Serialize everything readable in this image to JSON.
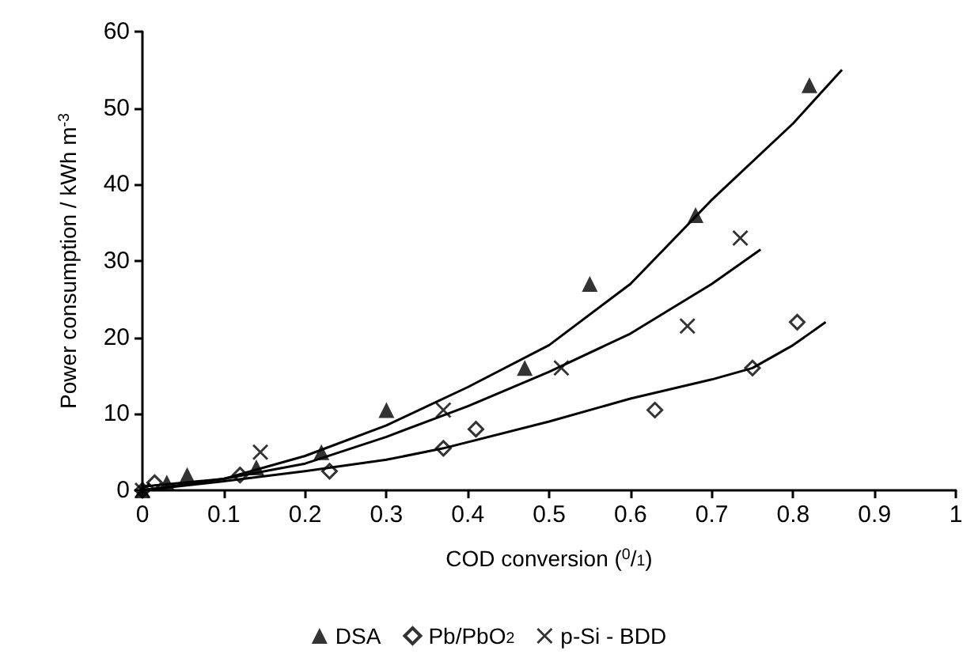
{
  "chart_data": {
    "type": "scatter",
    "xlabel": "COD conversion ($^{0}$/$_{1}$)",
    "ylabel": "Power consumption / kWh m$^{-3}$",
    "xlim": [
      0,
      1
    ],
    "xticks": [
      0,
      0.1,
      0.2,
      0.3,
      0.4,
      0.5,
      0.6,
      0.7,
      0.8,
      0.9,
      1
    ],
    "ylim": [
      0,
      60
    ],
    "yticks": [
      0,
      10,
      20,
      30,
      40,
      50,
      60
    ],
    "grid": false,
    "legend": "bottom",
    "series": [
      {
        "name": "DSA",
        "color": "#000000",
        "marker": "triangle",
        "x": [
          0,
          0.03,
          0.055,
          0.14,
          0.22,
          0.3,
          0.47,
          0.55,
          0.68,
          0.82
        ],
        "values": [
          0,
          1,
          2,
          3,
          5,
          10.5,
          16,
          27,
          36,
          53
        ]
      },
      {
        "name": "Pb/PbO$_{2}$",
        "color": "#000000",
        "marker": "diamond",
        "x": [
          0,
          0.015,
          0.12,
          0.23,
          0.37,
          0.41,
          0.63,
          0.75,
          0.805
        ],
        "values": [
          0,
          1,
          2,
          2.5,
          5.5,
          8,
          10.5,
          16,
          22
        ]
      },
      {
        "name": "p-Si - BDD",
        "color": "#000000",
        "marker": "cross",
        "x": [
          0,
          0.145,
          0.37,
          0.515,
          0.67,
          0.735
        ],
        "values": [
          0,
          5,
          10.5,
          16,
          21.5,
          33
        ]
      },
      {
        "type": "line",
        "color": "#000000",
        "marker": "none",
        "x": [
          0,
          0.1,
          0.2,
          0.3,
          0.4,
          0.5,
          0.6,
          0.7,
          0.8,
          0.86
        ],
        "values": [
          0,
          1.5,
          4.5,
          8.5,
          13.5,
          19,
          27,
          38,
          48,
          55
        ]
      },
      {
        "type": "line",
        "color": "#000000",
        "marker": "none",
        "x": [
          0,
          0.1,
          0.2,
          0.3,
          0.37,
          0.5,
          0.6,
          0.7,
          0.75,
          0.8,
          0.84
        ],
        "values": [
          0,
          1.2,
          2.5,
          4,
          5.5,
          9,
          12,
          14.5,
          16,
          19,
          22
        ]
      },
      {
        "type": "line",
        "color": "#000000",
        "marker": "none",
        "x": [
          0,
          0.1,
          0.2,
          0.3,
          0.4,
          0.5,
          0.6,
          0.7,
          0.76
        ],
        "values": [
          0.5,
          1.5,
          3.5,
          7,
          11,
          15.5,
          20.5,
          27,
          31.5
        ]
      }
    ]
  }
}
